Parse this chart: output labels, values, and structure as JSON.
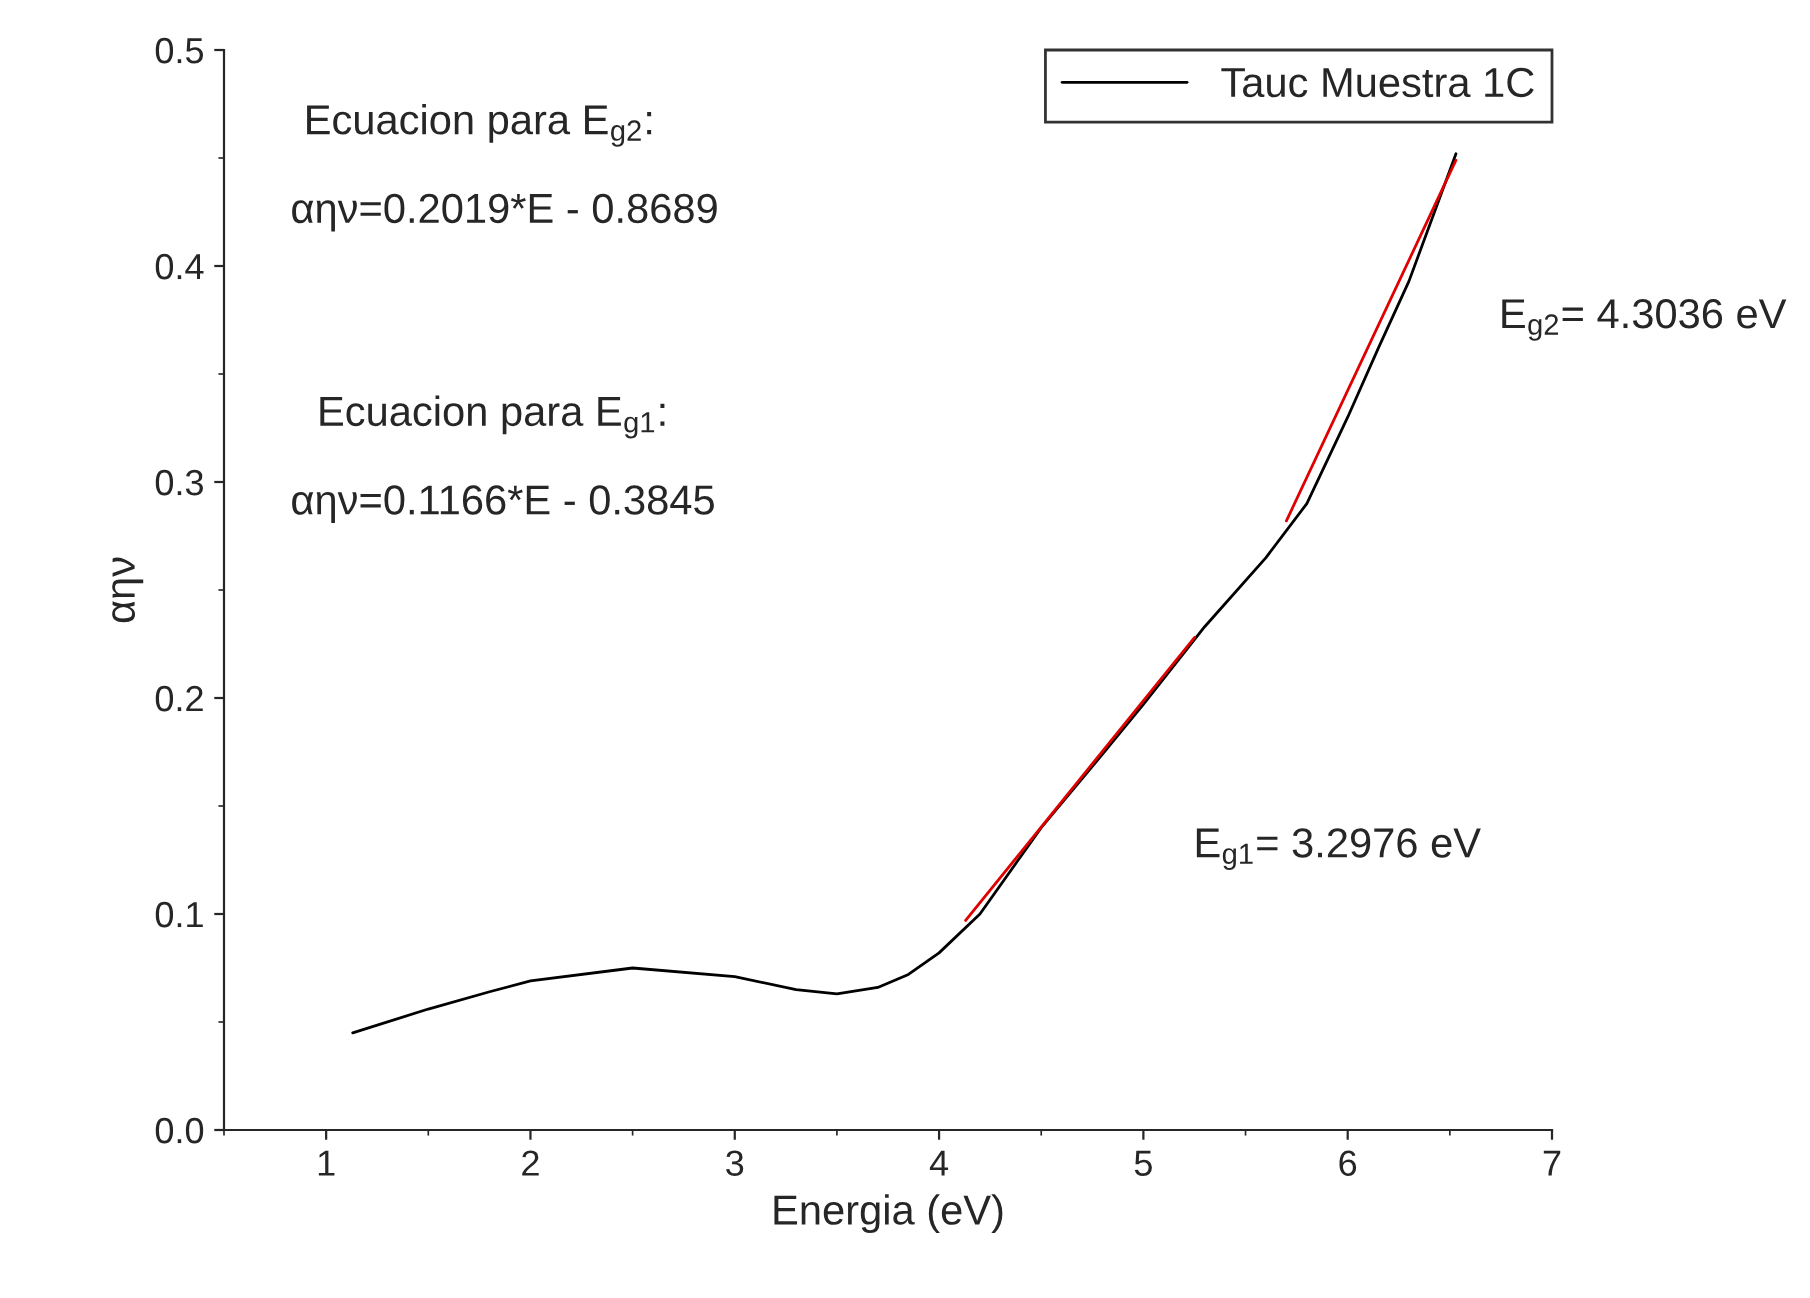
{
  "chart_data": {
    "type": "line",
    "xlabel": "Energia (eV)",
    "ylabel": "αην",
    "xlim": [
      0.5,
      7
    ],
    "xticks": [
      1,
      2,
      3,
      4,
      5,
      6,
      7
    ],
    "ylim": [
      0,
      0.5
    ],
    "yticks": [
      {
        "value": 0,
        "label": "0.0"
      },
      0.1,
      0.2,
      0.3,
      0.4,
      0.5
    ],
    "legend": "top right",
    "grid": false,
    "series": [
      {
        "name": "Tauc Muestra 1C",
        "color": "#000000",
        "x": [
          1.13,
          1.5,
          1.8,
          2.0,
          2.5,
          3.0,
          3.3,
          3.5,
          3.7,
          3.85,
          4.0,
          4.2,
          4.5,
          4.8,
          5.0,
          5.3,
          5.6,
          5.8,
          6.0,
          6.15,
          6.3,
          6.53
        ],
        "values": [
          0.045,
          0.056,
          0.064,
          0.069,
          0.075,
          0.071,
          0.065,
          0.063,
          0.066,
          0.072,
          0.082,
          0.1,
          0.14,
          0.174,
          0.197,
          0.233,
          0.265,
          0.29,
          0.33,
          0.362,
          0.393,
          0.452
        ]
      },
      {
        "type": "line",
        "color": "#e00000",
        "x": [
          4.13,
          5.25
        ],
        "values": [
          0.097,
          0.228
        ]
      },
      {
        "type": "line",
        "color": "#e00000",
        "x": [
          5.7,
          6.53
        ],
        "values": [
          0.282,
          0.449
        ]
      }
    ],
    "annotations": [
      "Ecuacion para E$_{g2}$:",
      "αην=0.2019*E - 0.8689",
      "Ecuacion para E$_{g1}$:",
      "αην=0.1166*E - 0.3845",
      "E$_{g2}$= 4.3036 eV",
      "E$_{g1}$= 3.2976 eV"
    ]
  }
}
